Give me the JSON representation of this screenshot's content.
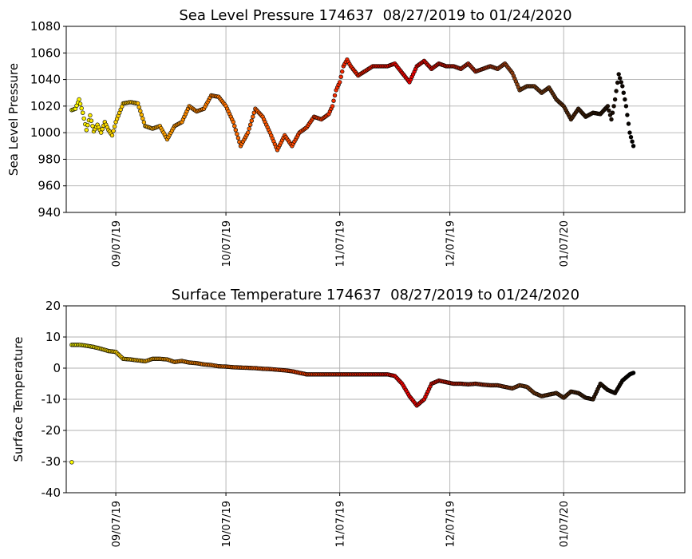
{
  "chart_data": [
    {
      "type": "scatter",
      "title": "Sea Level Pressure 174637  08/27/2019 to 01/24/2020",
      "xlabel": "",
      "ylabel": "Sea Level Pressure",
      "ylim": [
        940,
        1080
      ],
      "yticks": [
        940,
        960,
        980,
        1000,
        1020,
        1040,
        1060,
        1080
      ],
      "xlim": [
        -13.5,
        155
      ],
      "xticks": [
        {
          "label": "09/07/19",
          "day": 0
        },
        {
          "label": "10/07/19",
          "day": 30
        },
        {
          "label": "11/07/19",
          "day": 61
        },
        {
          "label": "12/07/19",
          "day": 91
        },
        {
          "label": "01/07/20",
          "day": 122
        }
      ],
      "grid": true,
      "color_ramp": [
        "#ffff00",
        "#ff8c00",
        "#ff4500",
        "#ee0000",
        "#8b4513",
        "#000000"
      ],
      "series": [
        {
          "name": "pressure",
          "day": [
            -12,
            -11,
            -10,
            -9,
            -8,
            -7,
            -6,
            -5,
            -4,
            -3,
            -2,
            -1,
            0,
            2,
            4,
            6,
            8,
            10,
            12,
            14,
            16,
            18,
            20,
            22,
            24,
            26,
            28,
            30,
            32,
            34,
            36,
            38,
            40,
            42,
            44,
            46,
            48,
            50,
            52,
            54,
            56,
            58,
            59,
            60,
            61,
            62,
            63,
            64,
            66,
            70,
            74,
            76,
            78,
            80,
            82,
            84,
            86,
            88,
            90,
            92,
            94,
            96,
            98,
            100,
            102,
            104,
            106,
            108,
            110,
            112,
            114,
            116,
            118,
            120,
            122,
            124,
            126,
            128,
            130,
            132,
            134,
            135,
            136,
            137,
            138,
            139,
            140,
            141
          ],
          "values": [
            1017,
            1018,
            1025,
            1015,
            1002,
            1013,
            1001,
            1006,
            1000,
            1008,
            1002,
            998,
            1008,
            1022,
            1023,
            1022,
            1005,
            1003,
            1005,
            995,
            1005,
            1008,
            1020,
            1016,
            1018,
            1028,
            1027,
            1020,
            1008,
            990,
            1000,
            1018,
            1012,
            1000,
            987,
            998,
            990,
            1000,
            1004,
            1012,
            1010,
            1014,
            1020,
            1032,
            1038,
            1050,
            1055,
            1050,
            1043,
            1050,
            1050,
            1052,
            1045,
            1038,
            1050,
            1054,
            1048,
            1052,
            1050,
            1050,
            1048,
            1052,
            1046,
            1048,
            1050,
            1048,
            1052,
            1045,
            1032,
            1035,
            1035,
            1030,
            1034,
            1025,
            1020,
            1010,
            1018,
            1012,
            1015,
            1014,
            1020,
            1010,
            1025,
            1044,
            1035,
            1020,
            1000,
            990
          ]
        }
      ]
    },
    {
      "type": "scatter",
      "title": "Surface Temperature 174637  08/27/2019 to 01/24/2020",
      "xlabel": "",
      "ylabel": "Surface Temperature",
      "ylim": [
        -40,
        20
      ],
      "yticks": [
        -40,
        -30,
        -20,
        -10,
        0,
        10,
        20
      ],
      "xlim": [
        -13.5,
        155
      ],
      "xticks": [
        {
          "label": "09/07/19",
          "day": 0
        },
        {
          "label": "10/07/19",
          "day": 30
        },
        {
          "label": "11/07/19",
          "day": 61
        },
        {
          "label": "12/07/19",
          "day": 91
        },
        {
          "label": "01/07/20",
          "day": 122
        }
      ],
      "grid": true,
      "color_ramp": [
        "#ffff00",
        "#ff8c00",
        "#ff4500",
        "#ee0000",
        "#8b4513",
        "#000000"
      ],
      "series": [
        {
          "name": "temperature",
          "day": [
            -12,
            -10,
            -8,
            -6,
            -4,
            -2,
            0,
            2,
            4,
            6,
            8,
            10,
            12,
            14,
            16,
            18,
            20,
            22,
            24,
            26,
            28,
            30,
            32,
            34,
            36,
            38,
            40,
            42,
            44,
            46,
            48,
            50,
            52,
            54,
            56,
            58,
            60,
            62,
            66,
            70,
            74,
            76,
            78,
            80,
            82,
            84,
            86,
            88,
            90,
            92,
            94,
            96,
            98,
            100,
            102,
            104,
            106,
            108,
            110,
            112,
            114,
            116,
            118,
            120,
            122,
            124,
            126,
            128,
            130,
            132,
            134,
            136,
            138,
            140,
            141
          ],
          "values": [
            7.5,
            7.5,
            7.2,
            6.8,
            6.2,
            5.5,
            5.2,
            3.0,
            2.8,
            2.5,
            2.2,
            3.0,
            3.0,
            2.8,
            2.0,
            2.3,
            1.8,
            1.6,
            1.2,
            1.0,
            0.6,
            0.5,
            0.3,
            0.2,
            0.1,
            0.0,
            -0.2,
            -0.3,
            -0.5,
            -0.7,
            -1.0,
            -1.5,
            -2.0,
            -2.0,
            -2.0,
            -2.0,
            -2.0,
            -2.0,
            -2.0,
            -2.0,
            -2.0,
            -2.5,
            -5.0,
            -9.0,
            -12.0,
            -10.0,
            -5.0,
            -4.0,
            -4.5,
            -5.0,
            -5.0,
            -5.2,
            -5.0,
            -5.3,
            -5.5,
            -5.5,
            -6.0,
            -6.5,
            -5.5,
            -6.0,
            -8.0,
            -9.0,
            -8.5,
            -8.0,
            -9.5,
            -7.5,
            -8.0,
            -9.5,
            -10.0,
            -5.0,
            -7.0,
            -8.0,
            -4.0,
            -2.0,
            -1.5
          ]
        },
        {
          "name": "outlier",
          "day": [
            -12
          ],
          "values": [
            -30.2
          ]
        }
      ]
    }
  ]
}
